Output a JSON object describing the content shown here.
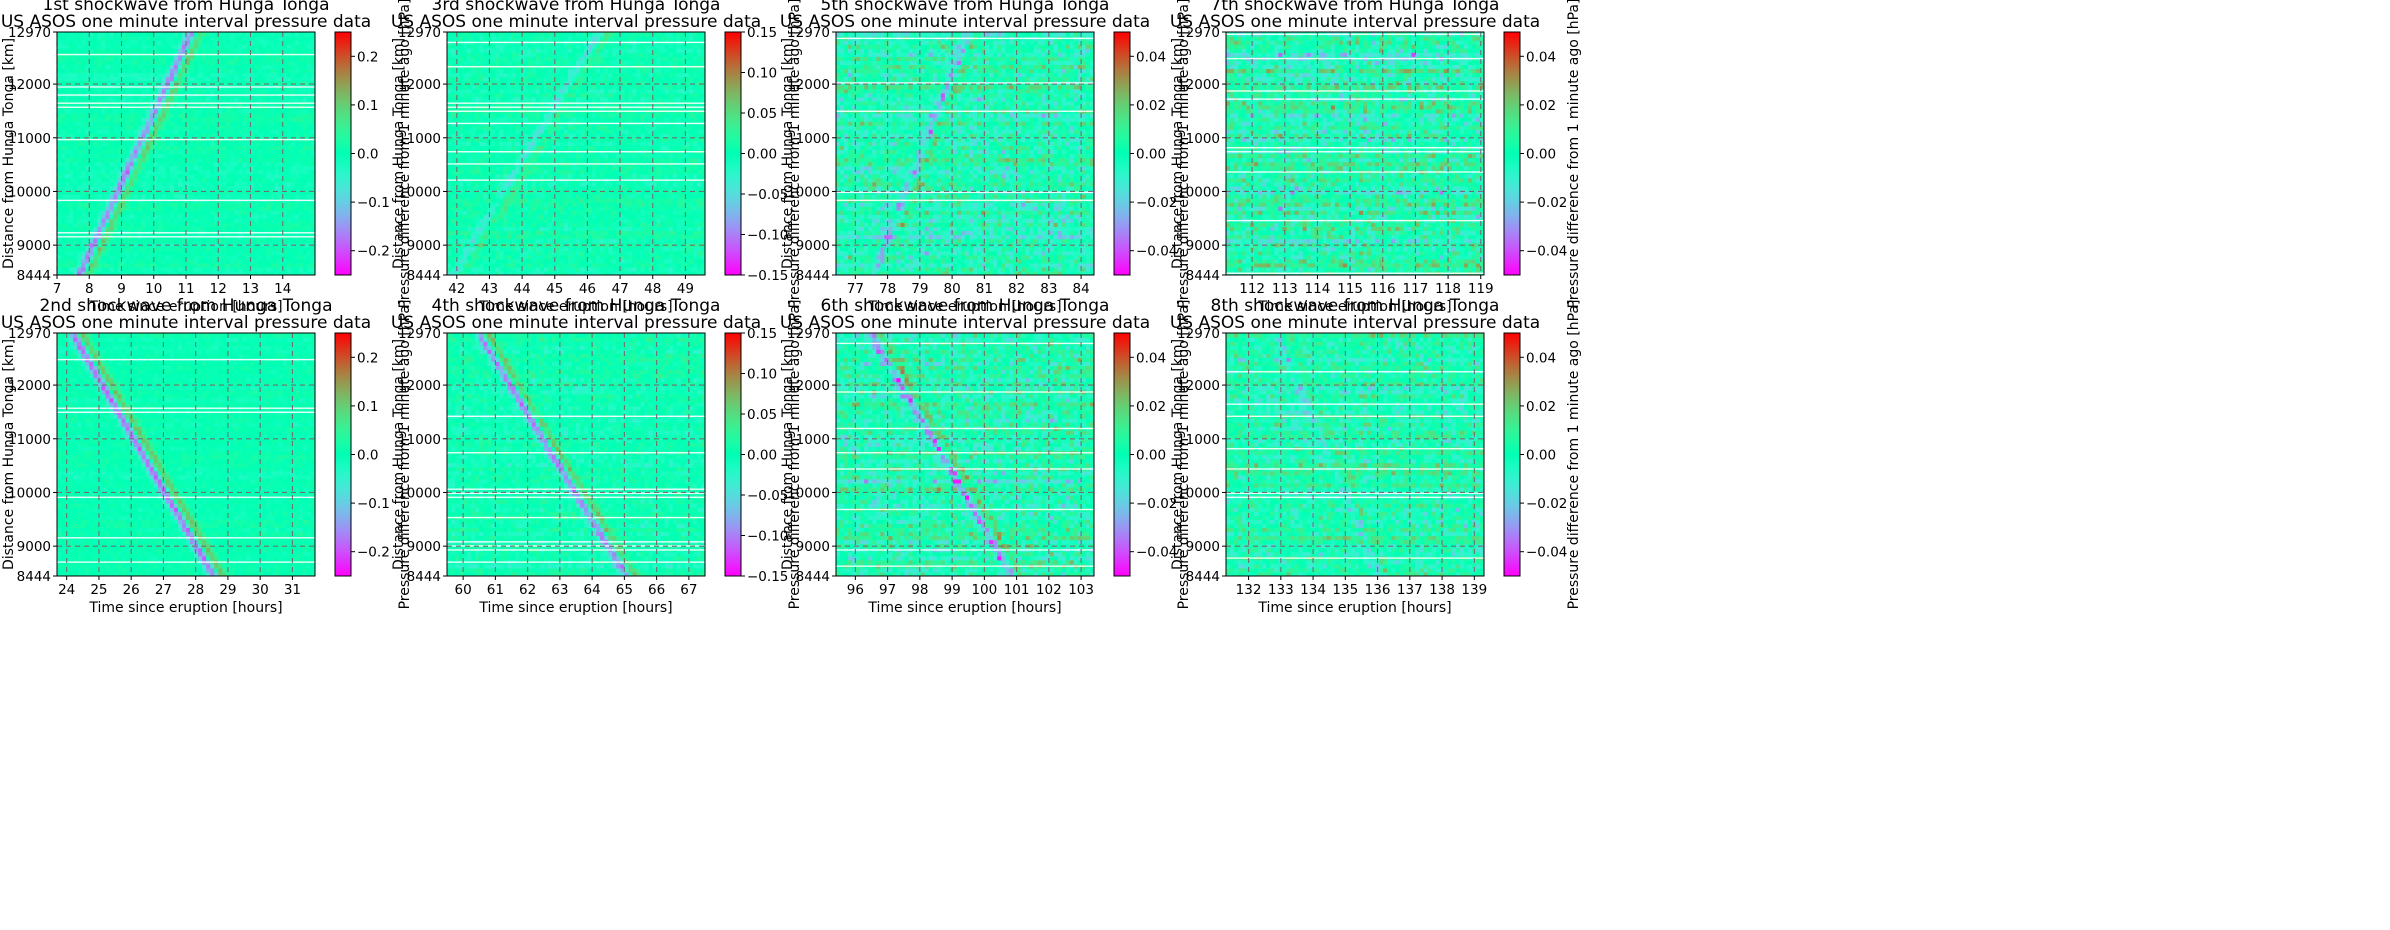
{
  "figure": {
    "type": "heatmap",
    "colormap": "rainbow",
    "grid": "dashed gray"
  },
  "chart_data": [
    {
      "type": "heatmap",
      "title": "1st shockwave from Hunga Tonga",
      "subtitle": "US ASOS one minute interval pressure data",
      "xlabel": "Time since eruption [hours]",
      "ylabel": "Distance from Hunga Tonga [km]",
      "colorbar_label": "Pressure difference from 1 minute ago [hPa]",
      "xlim": [
        7,
        15
      ],
      "ylim": [
        8444,
        12970
      ],
      "xticks": [
        7,
        8,
        9,
        10,
        11,
        12,
        13,
        14
      ],
      "yticks": [
        8444,
        9000,
        10000,
        11000,
        12000,
        12970
      ],
      "ctick_values": [
        -0.2,
        -0.1,
        0.0,
        0.1,
        0.2
      ],
      "ctick_labels": [
        "−0.2",
        "−0.1",
        "0.0",
        "0.1",
        "0.2"
      ],
      "clim": [
        -0.25,
        0.25
      ],
      "wave": {
        "direction": "outbound",
        "start_time": 7.8,
        "end_time": 11.3,
        "strength": 0.8
      },
      "noise_level": 0.12
    },
    {
      "type": "heatmap",
      "title": "3rd shockwave from Hunga Tonga",
      "subtitle": "US ASOS one minute interval pressure data",
      "xlabel": "Time since eruption [hours]",
      "ylabel": "Distance from Hunga Tonga [km]",
      "colorbar_label": "Pressure difference from 1 minute ago [hPa]",
      "xlim": [
        41.7,
        49.6
      ],
      "ylim": [
        8444,
        12970
      ],
      "xticks": [
        42,
        43,
        44,
        45,
        46,
        47,
        48,
        49
      ],
      "yticks": [
        8444,
        9000,
        10000,
        11000,
        12000,
        12970
      ],
      "ctick_values": [
        -0.15,
        -0.1,
        -0.05,
        0.0,
        0.05,
        0.1,
        0.15
      ],
      "ctick_labels": [
        "−0.15",
        "−0.10",
        "−0.05",
        "0.00",
        "0.05",
        "0.10",
        "0.15"
      ],
      "clim": [
        -0.15,
        0.15
      ],
      "wave": {
        "direction": "outbound",
        "start_time": 42.0,
        "end_time": 46.5,
        "strength": 0.35
      },
      "noise_level": 0.18
    },
    {
      "type": "heatmap",
      "title": "5th shockwave from Hunga Tonga",
      "subtitle": "US ASOS one minute interval pressure data",
      "xlabel": "Time since eruption [hours]",
      "ylabel": "Distance from Hunga Tonga [km]",
      "colorbar_label": "Pressure difference from 1 minute ago [hPa]",
      "xlim": [
        76.4,
        84.4
      ],
      "ylim": [
        8444,
        12970
      ],
      "xticks": [
        77,
        78,
        79,
        80,
        81,
        82,
        83,
        84
      ],
      "yticks": [
        8444,
        9000,
        10000,
        11000,
        12000,
        12970
      ],
      "ctick_values": [
        -0.04,
        -0.02,
        0.0,
        0.02,
        0.04
      ],
      "ctick_labels": [
        "−0.04",
        "−0.02",
        "0.00",
        "0.02",
        "0.04"
      ],
      "clim": [
        -0.05,
        0.05
      ],
      "wave": {
        "direction": "outbound",
        "start_time": 77.7,
        "end_time": 80.6,
        "strength": 0.5
      },
      "noise_level": 0.45
    },
    {
      "type": "heatmap",
      "title": "7th shockwave from Hunga Tonga",
      "subtitle": "US ASOS one minute interval pressure data",
      "xlabel": "Time since eruption [hours]",
      "ylabel": "Distance from Hunga Tonga [km]",
      "colorbar_label": "Pressure difference from 1 minute ago [hPa]",
      "xlim": [
        111.2,
        119.1
      ],
      "ylim": [
        8444,
        12970
      ],
      "xticks": [
        112,
        113,
        114,
        115,
        116,
        117,
        118,
        119
      ],
      "yticks": [
        8444,
        9000,
        10000,
        11000,
        12000,
        12970
      ],
      "ctick_values": [
        -0.04,
        -0.02,
        0.0,
        0.02,
        0.04
      ],
      "ctick_labels": [
        "−0.04",
        "−0.02",
        "0.00",
        "0.02",
        "0.04"
      ],
      "clim": [
        -0.05,
        0.05
      ],
      "wave": {
        "direction": "outbound",
        "start_time": 112.0,
        "end_time": 116.0,
        "strength": 0.15
      },
      "noise_level": 0.5
    },
    {
      "type": "heatmap",
      "title": "2nd shockwave from Hunga Tonga",
      "subtitle": "US ASOS one minute interval pressure data",
      "xlabel": "Time since eruption [hours]",
      "ylabel": "Distance from Hunga Tonga [km]",
      "colorbar_label": "Pressure difference from 1 minute ago [hPa]",
      "xlim": [
        23.7,
        31.7
      ],
      "ylim": [
        8444,
        12970
      ],
      "xticks": [
        24,
        25,
        26,
        27,
        28,
        29,
        30,
        31
      ],
      "yticks": [
        8444,
        9000,
        10000,
        11000,
        12000,
        12970
      ],
      "ctick_values": [
        -0.2,
        -0.1,
        0.0,
        0.1,
        0.2
      ],
      "ctick_labels": [
        "−0.2",
        "−0.1",
        "0.0",
        "0.1",
        "0.2"
      ],
      "clim": [
        -0.25,
        0.25
      ],
      "wave": {
        "direction": "inbound",
        "start_time": 24.3,
        "end_time": 28.7,
        "strength": 0.9
      },
      "noise_level": 0.1
    },
    {
      "type": "heatmap",
      "title": "4th shockwave from Hunga Tonga",
      "subtitle": "US ASOS one minute interval pressure data",
      "xlabel": "Time since eruption [hours]",
      "ylabel": "Distance from Hunga Tonga [km]",
      "colorbar_label": "Pressure difference from 1 minute ago [hPa]",
      "xlim": [
        59.5,
        67.5
      ],
      "ylim": [
        8444,
        12970
      ],
      "xticks": [
        60,
        61,
        62,
        63,
        64,
        65,
        66,
        67
      ],
      "yticks": [
        8444,
        9000,
        10000,
        11000,
        12000,
        12970
      ],
      "ctick_values": [
        -0.15,
        -0.1,
        -0.05,
        0.0,
        0.05,
        0.1,
        0.15
      ],
      "ctick_labels": [
        "−0.15",
        "−0.10",
        "−0.05",
        "0.00",
        "0.05",
        "0.10",
        "0.15"
      ],
      "clim": [
        -0.15,
        0.15
      ],
      "wave": {
        "direction": "inbound",
        "start_time": 60.6,
        "end_time": 65.2,
        "strength": 0.8
      },
      "noise_level": 0.2
    },
    {
      "type": "heatmap",
      "title": "6th shockwave from Hunga Tonga",
      "subtitle": "US ASOS one minute interval pressure data",
      "xlabel": "Time since eruption [hours]",
      "ylabel": "Distance from Hunga Tonga [km]",
      "colorbar_label": "Pressure difference from 1 minute ago [hPa]",
      "xlim": [
        95.4,
        103.4
      ],
      "ylim": [
        8444,
        12970
      ],
      "xticks": [
        96,
        97,
        98,
        99,
        100,
        101,
        102,
        103
      ],
      "yticks": [
        8444,
        9000,
        10000,
        11000,
        12000,
        12970
      ],
      "ctick_values": [
        -0.04,
        -0.02,
        0.0,
        0.02,
        0.04
      ],
      "ctick_labels": [
        "−0.04",
        "−0.02",
        "0.00",
        "0.02",
        "0.04"
      ],
      "clim": [
        -0.05,
        0.05
      ],
      "wave": {
        "direction": "inbound",
        "start_time": 96.6,
        "end_time": 101.0,
        "strength": 0.75
      },
      "noise_level": 0.45
    },
    {
      "type": "heatmap",
      "title": "8th shockwave from Hunga Tonga",
      "subtitle": "US ASOS one minute interval pressure data",
      "xlabel": "Time since eruption [hours]",
      "ylabel": "Distance from Hunga Tonga [km]",
      "colorbar_label": "Pressure difference from 1 minute ago [hPa]",
      "xlim": [
        131.3,
        139.3
      ],
      "ylim": [
        8444,
        12970
      ],
      "xticks": [
        132,
        133,
        134,
        135,
        136,
        137,
        138,
        139
      ],
      "yticks": [
        8444,
        9000,
        10000,
        11000,
        12000,
        12970
      ],
      "ctick_values": [
        -0.04,
        -0.02,
        0.0,
        0.02,
        0.04
      ],
      "ctick_labels": [
        "−0.04",
        "−0.02",
        "0.00",
        "0.02",
        "0.04"
      ],
      "clim": [
        -0.05,
        0.05
      ],
      "wave": {
        "direction": "inbound",
        "start_time": 133.0,
        "end_time": 136.2,
        "strength": 0.35
      },
      "noise_level": 0.4
    }
  ]
}
